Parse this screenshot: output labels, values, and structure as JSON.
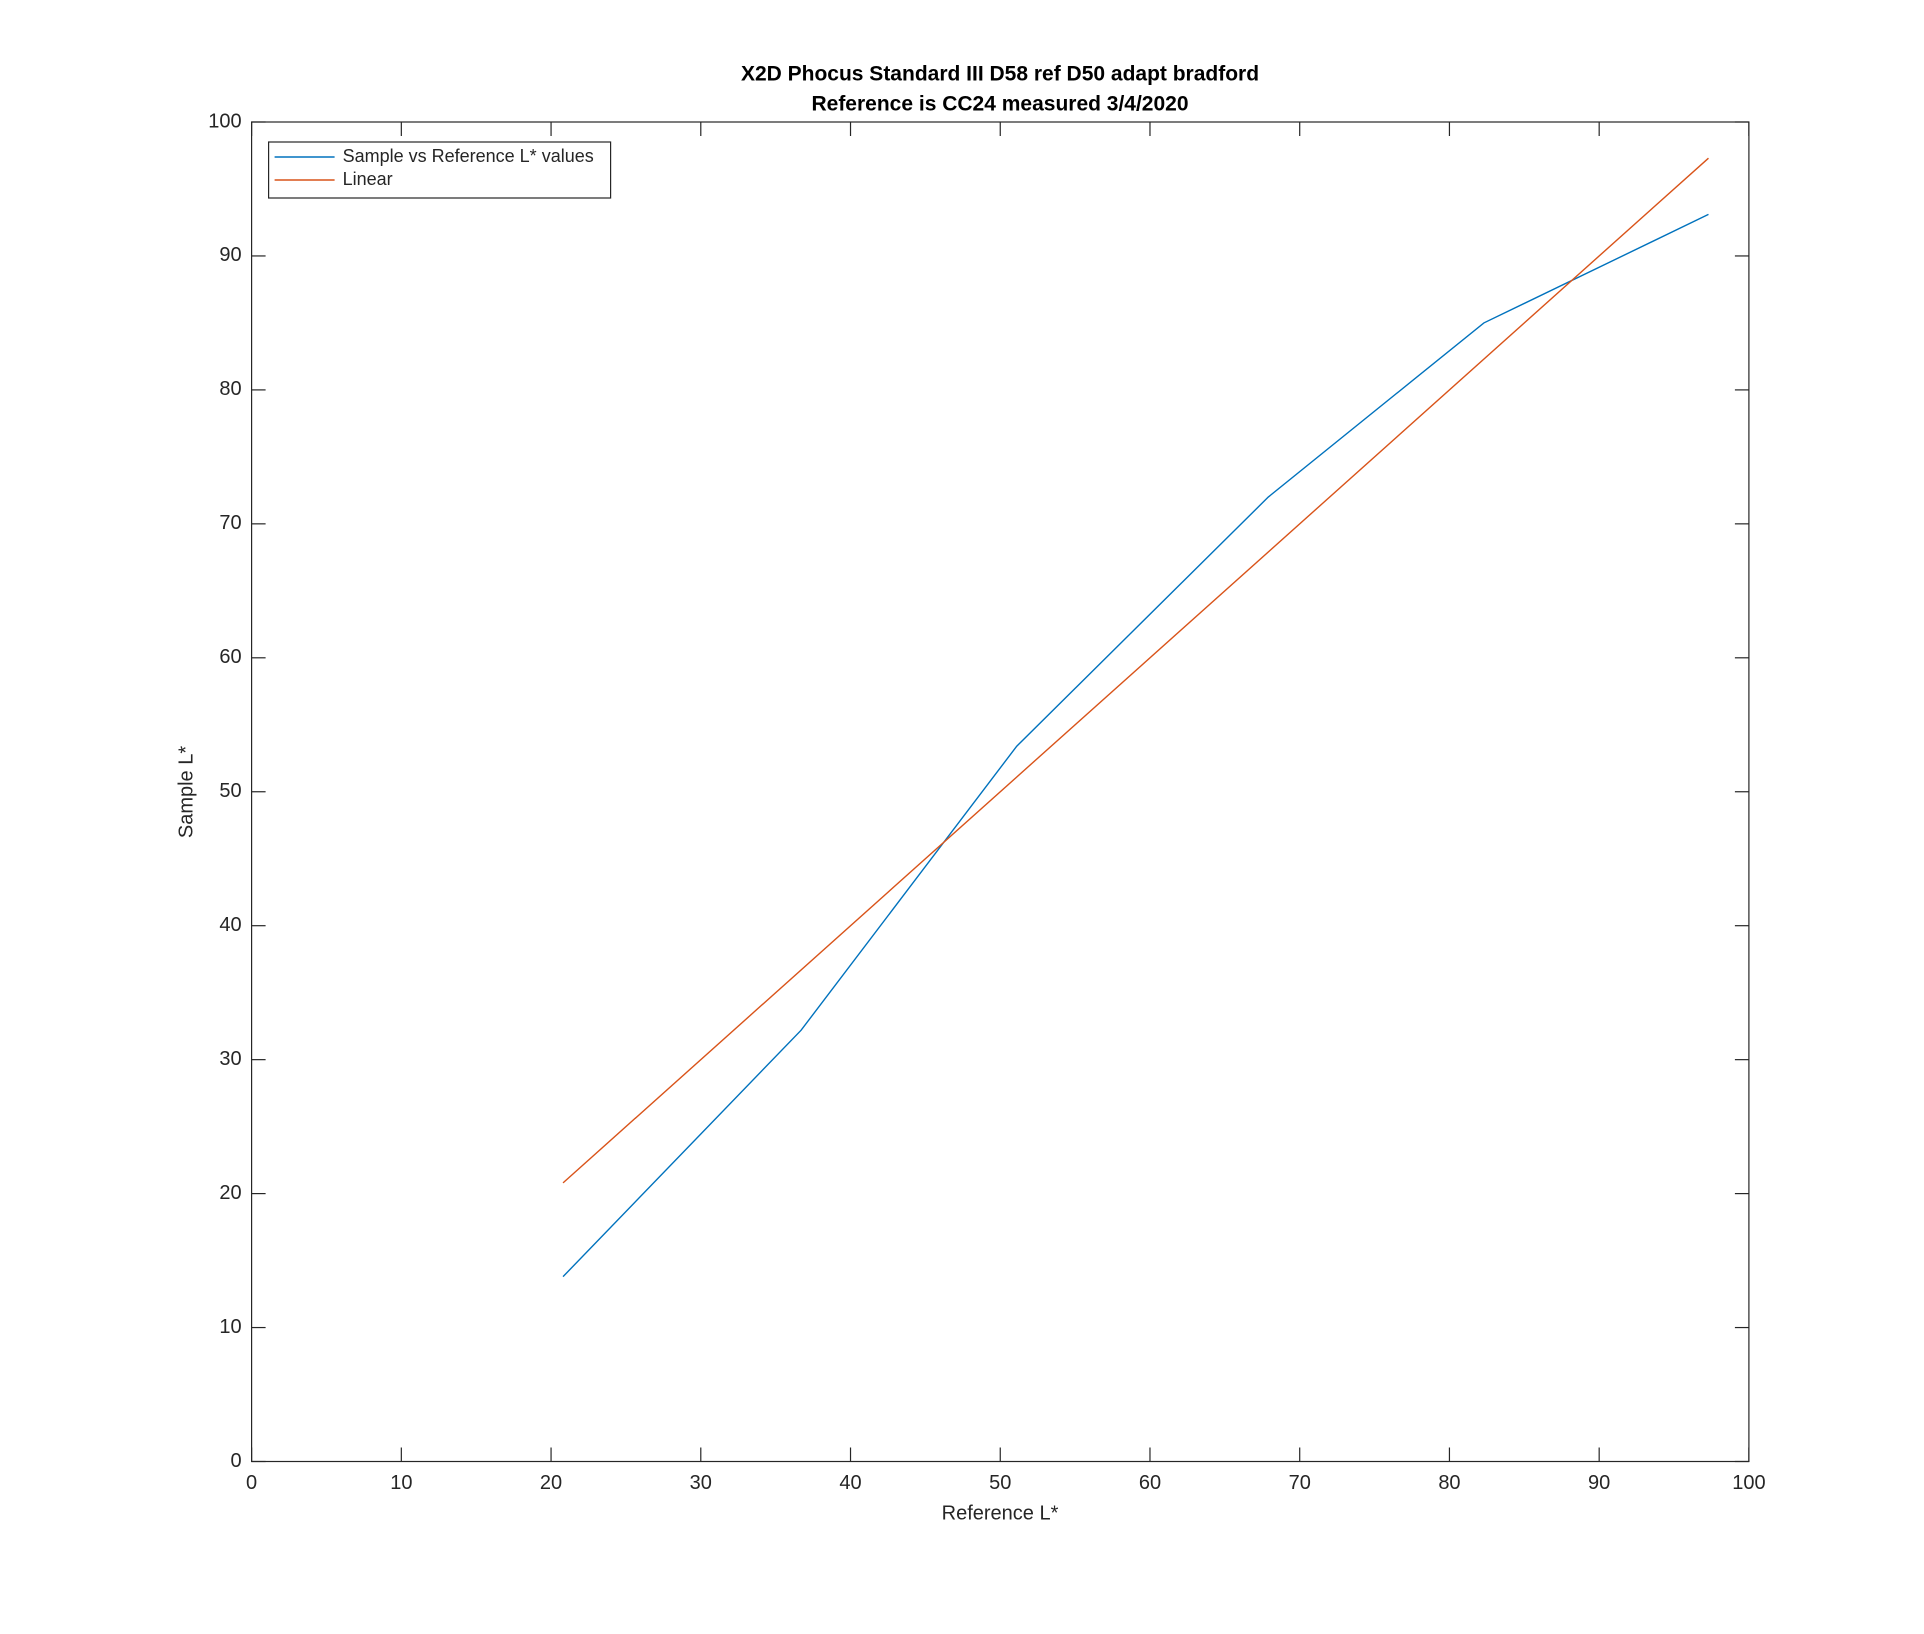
{
  "chart_data": {
    "type": "line",
    "title": [
      "X2D Phocus Standard III D58 ref D50 adapt bradford",
      "Reference is CC24 measured 3/4/2020"
    ],
    "xlabel": "Reference L*",
    "ylabel": "Sample L*",
    "series": [
      {
        "name": "Sample vs Reference L* values",
        "color": "#0072bd",
        "x": [
          20.8,
          36.7,
          51.1,
          67.9,
          82.3,
          97.3
        ],
        "values": [
          13.8,
          32.2,
          53.4,
          72.0,
          85.0,
          93.1
        ]
      },
      {
        "name": "Linear",
        "color": "#d95319",
        "x": [
          20.8,
          97.3
        ],
        "values": [
          20.8,
          97.3
        ]
      }
    ],
    "xlim": [
      0,
      100
    ],
    "xticks": [
      0,
      10,
      20,
      30,
      40,
      50,
      60,
      70,
      80,
      90,
      100
    ],
    "ylim": [
      0,
      100
    ],
    "yticks": [
      0,
      10,
      20,
      30,
      40,
      50,
      60,
      70,
      80,
      90,
      100
    ],
    "grid": false,
    "legend": "upper left"
  }
}
